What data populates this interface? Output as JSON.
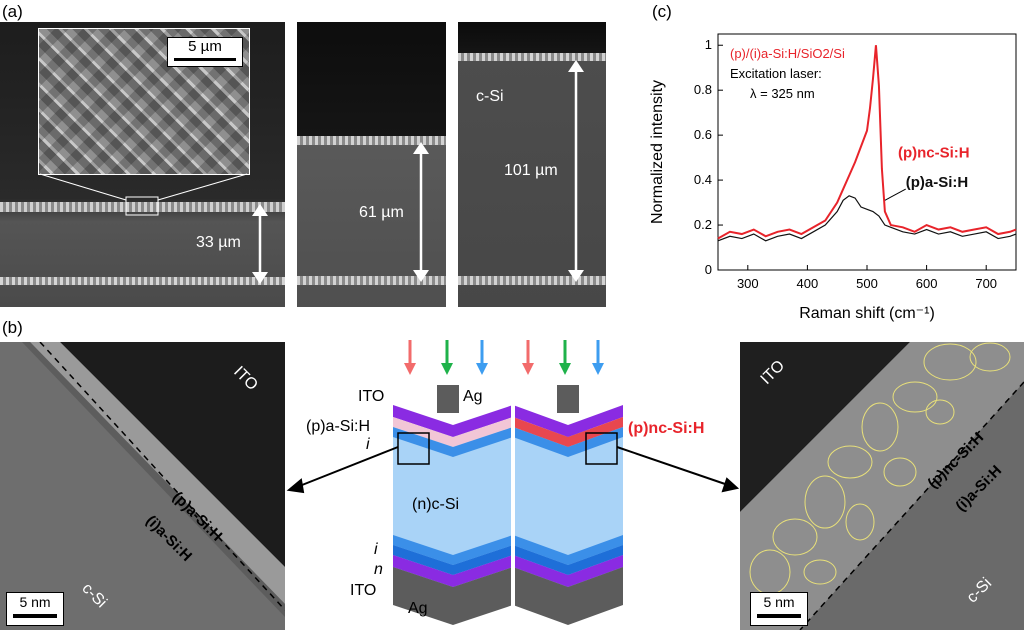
{
  "panel_a": {
    "label": "(a)",
    "inset_scale": "5 µm",
    "thick_33": "33 µm",
    "thick_61": "61 µm",
    "thick_101": "101 µm",
    "csi": "c-Si"
  },
  "panel_b": {
    "label": "(b)",
    "left_tem": {
      "ito": "ITO",
      "p_layer": "(p)a-Si:H",
      "i_layer": "(i)a-Si:H",
      "csi": "c-Si",
      "scale": "5 nm"
    },
    "right_tem": {
      "ito": "ITO",
      "p_layer": "(p)nc-Si:H",
      "i_layer": "(i)a-Si:H",
      "csi": "c-Si",
      "scale": "5 nm"
    },
    "schematic": {
      "ito_top": "ITO",
      "ag_top": "Ag",
      "p_asi": "(p)a-Si:H",
      "i_top": "i",
      "nc_si": "(n)c-Si",
      "i_bot": "i",
      "n_bot": "n",
      "ito_bot": "ITO",
      "ag_bot": "Ag",
      "p_ncsi": "(p)nc-Si:H"
    }
  },
  "panel_c": {
    "label": "(c)"
  },
  "colors": {
    "red": "#e8242b",
    "green": "#1fb24a",
    "blue": "#3d9df0",
    "ito_purple": "#8a2be2",
    "psi_pink": "#f2c6d6",
    "pnc_red": "#e8474f",
    "i_blue": "#3b8fe8",
    "csi_light": "#a9d3f7",
    "ag_grey": "#5c5c5c"
  },
  "chart_data": {
    "type": "line",
    "xlabel": "Raman shift (cm⁻¹)",
    "ylabel": "Normalized intensity",
    "xlim": [
      250,
      750
    ],
    "ylim": [
      0,
      1.05
    ],
    "xticks": [
      300,
      400,
      500,
      600,
      700
    ],
    "yticks": [
      0,
      0.2,
      0.4,
      0.6,
      0.8,
      1
    ],
    "annotations": {
      "sample": "(p)/(i)a-Si:H/SiO2/Si",
      "laser": "Excitation laser:",
      "lambda": "λ = 325 nm"
    },
    "series": [
      {
        "name": "(p)nc-Si:H",
        "color": "#e8242b",
        "x": [
          250,
          270,
          290,
          310,
          330,
          350,
          370,
          390,
          410,
          430,
          450,
          460,
          470,
          480,
          490,
          500,
          505,
          510,
          515,
          520,
          525,
          530,
          540,
          560,
          580,
          600,
          620,
          640,
          660,
          680,
          700,
          720,
          740,
          750
        ],
        "y": [
          0.14,
          0.17,
          0.16,
          0.18,
          0.15,
          0.17,
          0.18,
          0.16,
          0.19,
          0.22,
          0.3,
          0.36,
          0.42,
          0.48,
          0.55,
          0.62,
          0.72,
          0.85,
          1.0,
          0.82,
          0.45,
          0.26,
          0.2,
          0.19,
          0.17,
          0.2,
          0.18,
          0.19,
          0.17,
          0.18,
          0.19,
          0.16,
          0.17,
          0.18
        ]
      },
      {
        "name": "(p)a-Si:H",
        "color": "#111111",
        "x": [
          250,
          270,
          290,
          310,
          330,
          350,
          370,
          390,
          410,
          430,
          450,
          460,
          470,
          480,
          490,
          500,
          510,
          520,
          530,
          540,
          560,
          580,
          600,
          620,
          640,
          660,
          680,
          700,
          720,
          740,
          750
        ],
        "y": [
          0.13,
          0.15,
          0.14,
          0.16,
          0.13,
          0.15,
          0.16,
          0.14,
          0.17,
          0.2,
          0.26,
          0.31,
          0.33,
          0.32,
          0.28,
          0.27,
          0.26,
          0.24,
          0.2,
          0.19,
          0.17,
          0.16,
          0.18,
          0.16,
          0.17,
          0.15,
          0.16,
          0.17,
          0.14,
          0.15,
          0.16
        ]
      }
    ]
  }
}
